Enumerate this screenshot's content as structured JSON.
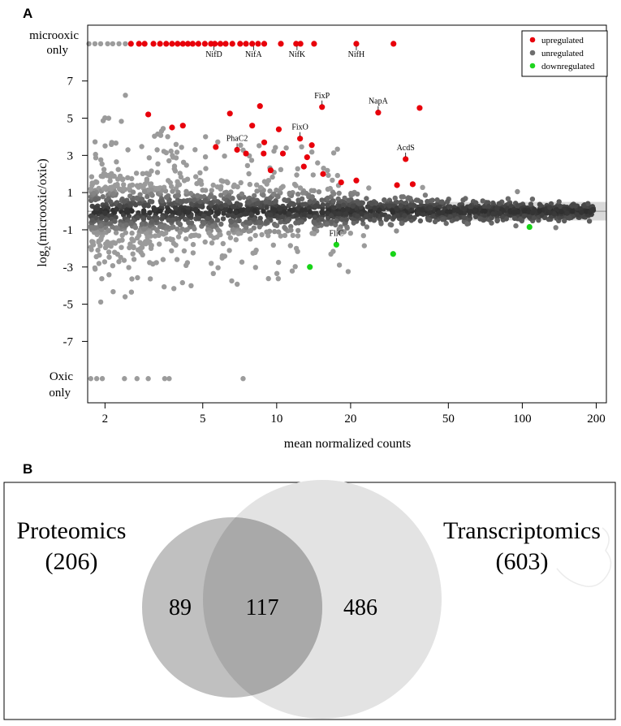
{
  "panel_a": {
    "letter": "A"
  },
  "panel_b": {
    "letter": "B"
  },
  "chart_data": [
    {
      "type": "scatter",
      "title": "",
      "xlabel": "mean normalized counts",
      "ylabel_prefix": "log",
      "ylabel_sub": "2",
      "ylabel_suffix": "(microoxic/oxic)",
      "xscale": "log",
      "xlim": [
        1.7,
        220
      ],
      "ylim": [
        -10.3,
        10
      ],
      "x_ticks": [
        2,
        5,
        10,
        20,
        50,
        100,
        200
      ],
      "x_tick_labels": [
        "2",
        "5",
        "10",
        "20",
        "50",
        "100",
        "200"
      ],
      "y_ticks": [
        7,
        5,
        3,
        1,
        -1,
        -3,
        -5,
        -7
      ],
      "y_tick_labels": [
        "7",
        "5",
        "3",
        "1",
        "-1",
        "-3",
        "-5",
        "-7"
      ],
      "top_label": [
        "microoxic",
        "only"
      ],
      "bottom_label": [
        "Oxic",
        "only"
      ],
      "cap_top_y": 9.0,
      "cap_bottom_y": -9.0,
      "shade_range": {
        "x_min": 45,
        "y_min": -0.5,
        "y_max": 0.5
      },
      "legend": {
        "position": "top-right",
        "entries": [
          {
            "label": "upregulated",
            "color": "#e8000b"
          },
          {
            "label": "unregulated",
            "color": "#6e6e6e"
          },
          {
            "label": "downregulated",
            "color": "#1fd41f"
          }
        ]
      },
      "colors": {
        "up": "#e8000b",
        "down": "#18d418",
        "grey_dark": "#2e2e2e",
        "grey_light": "#9c9c9c"
      },
      "upregulated": [
        [
          3.0,
          5.2
        ],
        [
          3.75,
          4.5
        ],
        [
          4.15,
          4.6
        ],
        [
          5.65,
          3.45
        ],
        [
          6.45,
          5.25
        ],
        [
          6.9,
          3.3
        ],
        [
          7.5,
          3.1
        ],
        [
          7.95,
          4.6
        ],
        [
          8.55,
          5.65
        ],
        [
          8.9,
          3.7
        ],
        [
          8.85,
          3.1
        ],
        [
          9.45,
          2.2
        ],
        [
          10.2,
          4.4
        ],
        [
          10.6,
          3.1
        ],
        [
          12.45,
          3.9
        ],
        [
          12.9,
          2.4
        ],
        [
          13.3,
          2.9
        ],
        [
          13.9,
          3.55
        ],
        [
          15.3,
          5.6
        ],
        [
          15.45,
          2.0
        ],
        [
          18.3,
          1.55
        ],
        [
          21.1,
          1.65
        ],
        [
          25.9,
          5.3
        ],
        [
          30.9,
          1.4
        ],
        [
          33.5,
          2.8
        ],
        [
          35.8,
          1.45
        ],
        [
          38.2,
          5.55
        ]
      ],
      "upregulated_capped_x": [
        2.55,
        2.75,
        2.9,
        3.15,
        3.35,
        3.55,
        3.75,
        3.95,
        4.15,
        4.35,
        4.55,
        4.8,
        5.1,
        5.4,
        5.6,
        5.9,
        6.2,
        6.6,
        7.1,
        7.5,
        7.95,
        8.4,
        8.9,
        10.4,
        12.0,
        12.5,
        14.2,
        21.1,
        29.9
      ],
      "grey_capped_top_x": [
        1.72,
        1.82,
        1.92,
        2.05,
        2.15,
        2.28,
        2.42
      ],
      "grey_capped_bottom_x": [
        1.75,
        1.85,
        1.95,
        2.4,
        2.7,
        3.0,
        3.5,
        3.65,
        7.3
      ],
      "downregulated": [
        [
          13.65,
          -3.0
        ],
        [
          17.5,
          -1.8
        ],
        [
          29.8,
          -2.3
        ],
        [
          107.0,
          -0.85
        ]
      ],
      "annotations": [
        {
          "label": "NifD",
          "x": 5.55,
          "y": 9.0,
          "side": "below"
        },
        {
          "label": "NifA",
          "x": 8.05,
          "y": 9.0,
          "side": "below"
        },
        {
          "label": "NifK",
          "x": 12.1,
          "y": 9.0,
          "side": "below"
        },
        {
          "label": "NifH",
          "x": 21.1,
          "y": 9.0,
          "side": "below"
        },
        {
          "label": "FixP",
          "x": 15.3,
          "y": 5.6,
          "side": "above"
        },
        {
          "label": "NapA",
          "x": 25.9,
          "y": 5.3,
          "side": "above"
        },
        {
          "label": "FixO",
          "x": 12.45,
          "y": 3.9,
          "side": "above"
        },
        {
          "label": "PhaC2",
          "x": 6.9,
          "y": 3.3,
          "side": "above"
        },
        {
          "label": "AcdS",
          "x": 33.5,
          "y": 2.8,
          "side": "above"
        },
        {
          "label": "FliC",
          "x": 17.5,
          "y": -1.8,
          "side": "above"
        }
      ]
    },
    {
      "type": "venn",
      "sets": [
        {
          "label": "Proteomics",
          "total": "(206)",
          "unique": 89
        },
        {
          "label": "Transcriptomics",
          "total": "(603)",
          "unique": 486
        }
      ],
      "intersection": 117,
      "colors": {
        "left": "#bfbfbf",
        "right": "#e3e3e3",
        "overlap": "#a8a8a8",
        "edge": "#9a9a9a"
      }
    }
  ]
}
